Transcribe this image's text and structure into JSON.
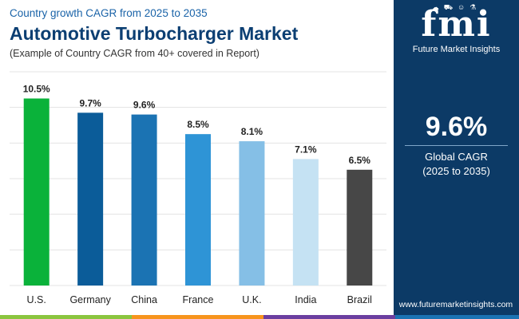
{
  "header": {
    "subtitle": "Country growth CAGR from 2025 to 2035",
    "title": "Automotive Turbocharger Market",
    "note": "(Example of Country CAGR from 40+ covered in Report)"
  },
  "chart_data": {
    "type": "bar",
    "title": "Automotive Turbocharger Market",
    "xlabel": "",
    "ylabel": "",
    "ylim": [
      0,
      12
    ],
    "grid": true,
    "categories": [
      "U.S.",
      "Germany",
      "China",
      "France",
      "U.K.",
      "India",
      "Brazil"
    ],
    "values": [
      10.5,
      9.7,
      9.6,
      8.5,
      8.1,
      7.1,
      6.5
    ],
    "labels": [
      "10.5%",
      "9.7%",
      "9.6%",
      "8.5%",
      "8.1%",
      "7.1%",
      "6.5%"
    ],
    "colors": [
      "#0ab23a",
      "#0b5c99",
      "#1b73b3",
      "#2e94d6",
      "#85bfe6",
      "#c5e2f3",
      "#474747"
    ]
  },
  "sidebar": {
    "logo_text": "fmi",
    "logo_caption": "Future Market Insights",
    "logo_icons": [
      "cloud-icon",
      "car-icon",
      "person-icon",
      "flask-icon"
    ],
    "cagr_value": "9.6%",
    "cagr_label_line1": "Global CAGR",
    "cagr_label_line2": "(2025 to 2035)",
    "website": "www.futuremarketinsights.com",
    "background": "#0c3a66"
  },
  "footer_strip_colors": [
    "#8bc53f",
    "#f7941d",
    "#6b3fa0",
    "#1b73b3"
  ]
}
